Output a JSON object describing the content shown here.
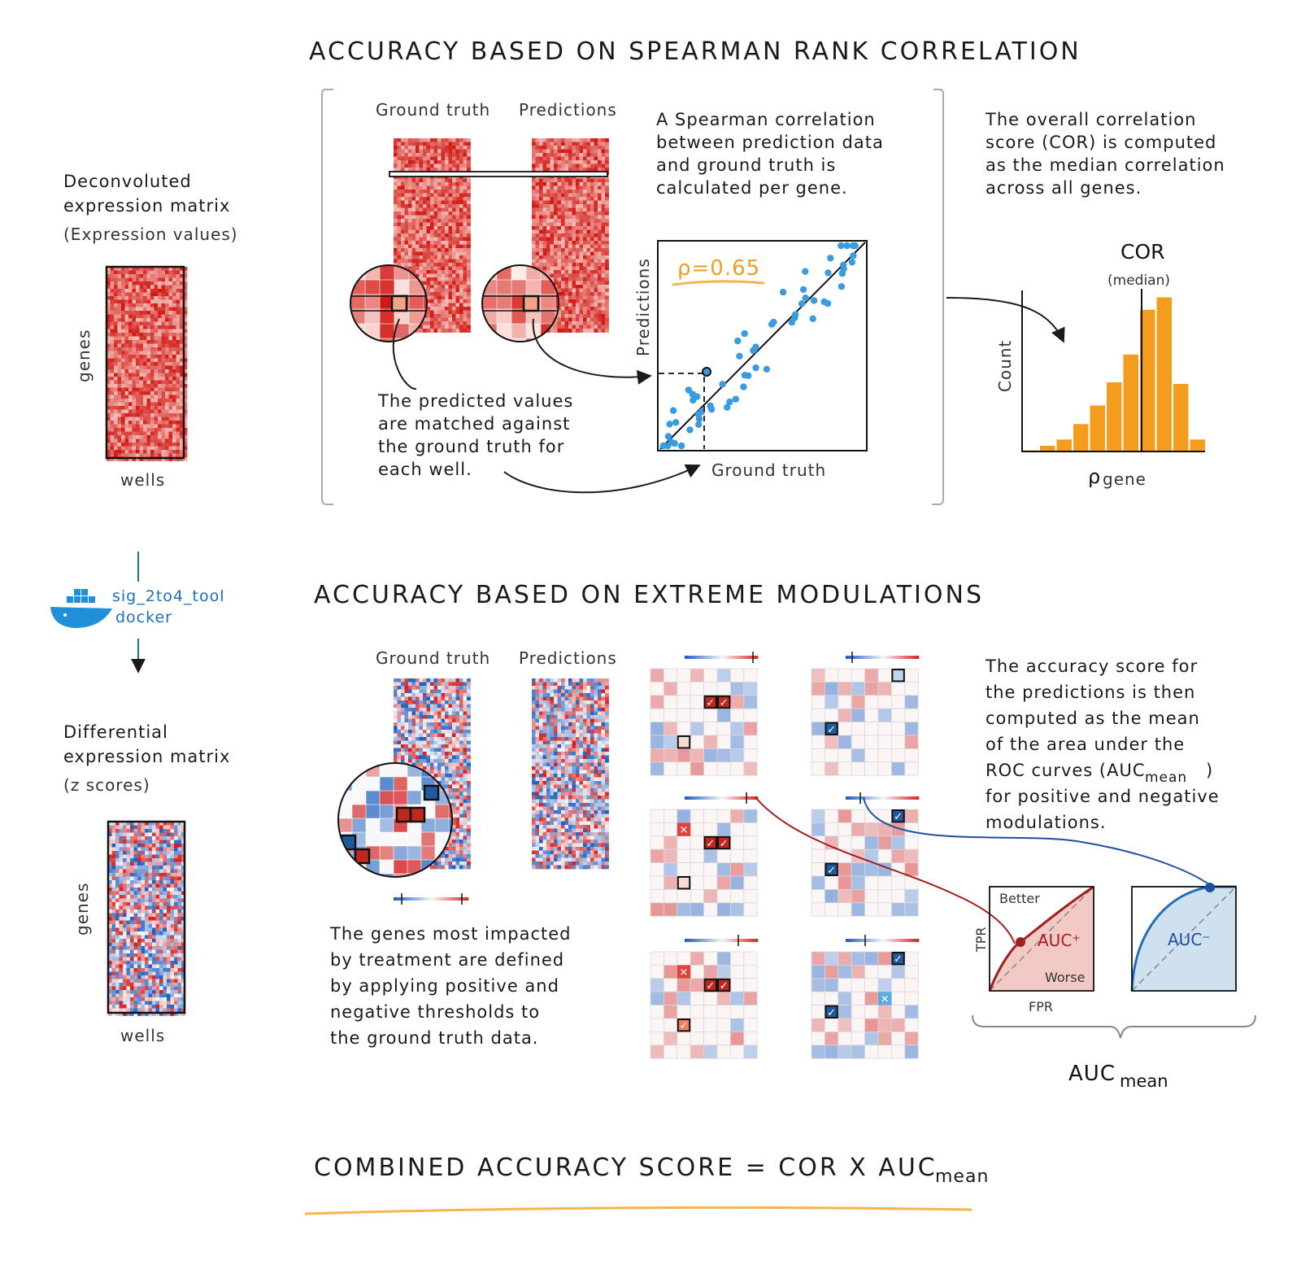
{
  "titles": {
    "spearman": "ACCURACY BASED ON SPEARMAN RANK CORRELATION",
    "extreme": "ACCURACY BASED ON EXTREME MODULATIONS",
    "combined_main": "COMBINED ACCURACY SCORE = COR X AUC",
    "combined_sub": "mean"
  },
  "left_panel": {
    "deconv_line1": "Deconvoluted",
    "deconv_line2": "expression matrix",
    "deconv_line3": "(Expression values)",
    "diff_line1": "Differential",
    "diff_line2": "expression matrix",
    "diff_line3": "(z scores)",
    "genes": "genes",
    "wells": "wells",
    "docker_line1": "sig_2to4_tool",
    "docker_line2": "docker"
  },
  "spearman_panel": {
    "ground_truth": "Ground truth",
    "predictions": "Predictions",
    "desc": [
      "A Spearman correlation",
      "between prediction data",
      "and ground truth is",
      "calculated per gene."
    ],
    "match_text": [
      "The predicted values",
      "are matched against",
      "the ground truth for",
      "each well."
    ],
    "rho_label": "ρ=0.65",
    "scatter_xlabel": "Ground truth",
    "scatter_ylabel": "Predictions",
    "overall_text": [
      "The overall correlation",
      "score (COR) is computed",
      "as the median correlation",
      "across all genes."
    ],
    "cor_label": "COR",
    "median_label": "(median)",
    "hist_ylabel": "Count",
    "hist_xlabel_rho": "ρ",
    "hist_xlabel_sub": "gene"
  },
  "extreme_panel": {
    "ground_truth": "Ground truth",
    "predictions": "Predictions",
    "genes_text": [
      "The genes most impacted",
      "by treatment are defined",
      "by applying positive and",
      "negative thresholds to",
      "the ground truth data."
    ],
    "accuracy_text": [
      "The accuracy score for",
      "the predictions is then",
      "computed as the mean",
      "of the area under the",
      "ROC curves (AUC",
      "for positive and negative",
      "modulations."
    ],
    "accuracy_sub": "mean",
    "accuracy_close": ")",
    "better": "Better",
    "worse": "Worse",
    "tpr": "TPR",
    "fpr": "FPR",
    "auc_pos": "AUC⁺",
    "auc_neg": "AUC⁻",
    "auc_mean_main": "AUC",
    "auc_mean_sub": "mean"
  },
  "colors": {
    "red": "#d7301f",
    "blue": "#2166ac",
    "orange": "#f39c1e",
    "dot_blue": "#3a9be0"
  }
}
